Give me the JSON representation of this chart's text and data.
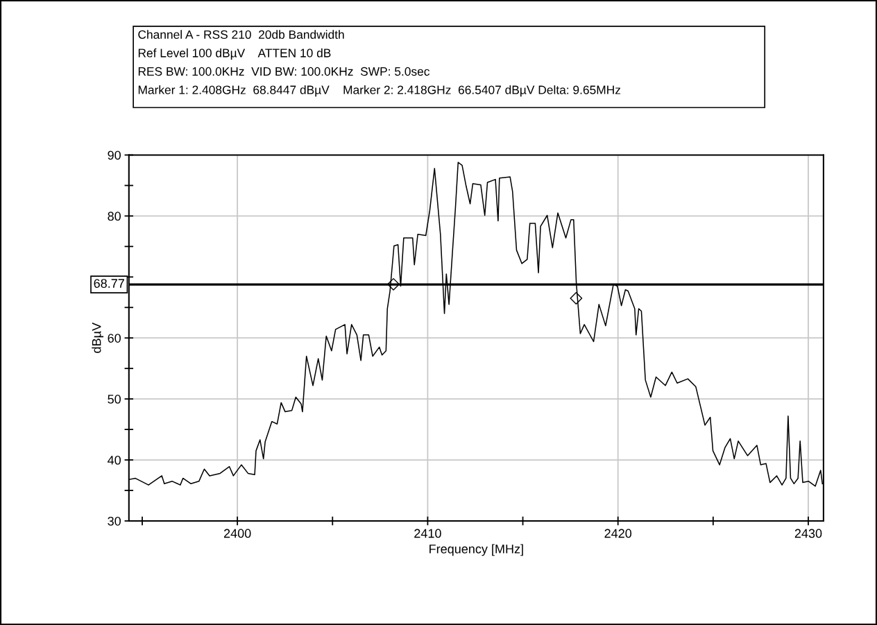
{
  "chart_data": {
    "type": "line",
    "annotations": [
      "Channel A - RSS 210  20db Bandwidth",
      "Ref Level 100 dBµV    ATTEN 10 dB",
      "RES BW: 100.0KHz  VID BW: 100.0KHz  SWP: 5.0sec",
      "Marker 1: 2.408GHz  68.8447 dBµV    Marker 2: 2.418GHz  66.5407 dBµV Delta: 9.65MHz"
    ],
    "xlabel": "Frequency [MHz]",
    "ylabel": "dBµV",
    "xlim": [
      2394.3,
      2430.8
    ],
    "ylim": [
      30,
      90
    ],
    "xticks": [
      {
        "value": 2395,
        "label": null
      },
      2400,
      {
        "value": 2405,
        "label": null
      },
      2410,
      {
        "value": 2415,
        "label": null
      },
      2420,
      {
        "value": 2425,
        "label": null
      },
      2430
    ],
    "yticks": [
      30,
      {
        "value": 35,
        "label": null
      },
      40,
      {
        "value": 45,
        "label": null
      },
      50,
      {
        "value": 55,
        "label": null
      },
      60,
      {
        "value": 65,
        "label": null
      },
      {
        "value": 70,
        "label": null
      },
      {
        "value": 75,
        "label": null
      },
      80,
      {
        "value": 85,
        "label": null
      },
      90
    ],
    "grid": true,
    "ref_lines": [
      {
        "axis": "y",
        "value": 68.77,
        "label": "68.77",
        "color": "#000000"
      }
    ],
    "series": [
      {
        "color": "#000000",
        "x": [
          2394.32,
          2394.63,
          2395.33,
          2395.75,
          2396.03,
          2396.16,
          2396.58,
          2397.0,
          2397.14,
          2397.56,
          2397.98,
          2398.26,
          2398.54,
          2399.09,
          2399.58,
          2399.79,
          2400.21,
          2400.56,
          2400.91,
          2400.98,
          2401.19,
          2401.37,
          2401.46,
          2401.81,
          2402.09,
          2402.3,
          2402.51,
          2402.86,
          2403.07,
          2403.35,
          2403.42,
          2403.63,
          2403.97,
          2404.25,
          2404.46,
          2404.67,
          2404.95,
          2405.16,
          2405.65,
          2405.76,
          2406.0,
          2406.28,
          2406.49,
          2406.62,
          2406.9,
          2407.11,
          2407.46,
          2407.6,
          2407.81,
          2407.88,
          2408.02,
          2408.23,
          2408.44,
          2408.58,
          2408.74,
          2409.21,
          2409.3,
          2409.48,
          2409.9,
          2410.11,
          2410.36,
          2410.67,
          2410.88,
          2410.98,
          2411.12,
          2411.3,
          2411.46,
          2411.6,
          2411.81,
          2412.02,
          2412.23,
          2412.37,
          2412.79,
          2413.0,
          2413.14,
          2413.56,
          2413.7,
          2413.77,
          2414.33,
          2414.46,
          2414.67,
          2414.95,
          2415.23,
          2415.37,
          2415.65,
          2415.82,
          2415.93,
          2416.28,
          2416.56,
          2416.84,
          2417.26,
          2417.53,
          2417.67,
          2417.81,
          2418.02,
          2418.23,
          2418.72,
          2419.0,
          2419.35,
          2419.76,
          2419.97,
          2420.18,
          2420.39,
          2420.53,
          2420.88,
          2420.95,
          2421.09,
          2421.23,
          2421.44,
          2421.72,
          2422.0,
          2422.49,
          2422.83,
          2423.11,
          2423.67,
          2424.09,
          2424.57,
          2424.85,
          2424.99,
          2425.34,
          2425.62,
          2425.9,
          2426.11,
          2426.32,
          2426.81,
          2427.3,
          2427.5,
          2427.78,
          2427.99,
          2428.34,
          2428.62,
          2428.83,
          2428.94,
          2429.07,
          2429.25,
          2429.46,
          2429.57,
          2429.71,
          2430.02,
          2430.37,
          2430.65,
          2430.74
        ],
        "values": [
          36.8,
          37.0,
          35.9,
          36.8,
          37.4,
          36.1,
          36.5,
          35.9,
          37.0,
          36.1,
          36.5,
          38.5,
          37.4,
          37.8,
          38.9,
          37.4,
          39.2,
          37.8,
          37.6,
          41.5,
          43.3,
          40.2,
          43.0,
          46.3,
          45.9,
          49.4,
          47.9,
          48.1,
          50.3,
          49.2,
          47.9,
          57.0,
          52.2,
          56.6,
          53.1,
          60.3,
          57.9,
          61.4,
          62.2,
          57.4,
          62.2,
          60.5,
          56.3,
          60.5,
          60.5,
          57.0,
          58.5,
          57.2,
          57.9,
          64.8,
          67.7,
          75.1,
          75.3,
          68.5,
          76.4,
          76.4,
          72.0,
          77.0,
          76.8,
          80.9,
          87.8,
          77.0,
          64.0,
          70.5,
          65.5,
          74.0,
          81.4,
          88.8,
          88.3,
          84.9,
          82.0,
          85.3,
          85.1,
          80.1,
          85.5,
          86.0,
          79.2,
          86.2,
          86.4,
          84.0,
          74.4,
          72.2,
          72.9,
          78.8,
          78.8,
          70.7,
          78.3,
          80.1,
          74.8,
          80.5,
          76.4,
          79.4,
          79.4,
          69.0,
          60.7,
          62.2,
          59.4,
          65.5,
          62.0,
          68.8,
          68.5,
          65.3,
          67.9,
          67.7,
          64.8,
          60.5,
          64.8,
          64.4,
          53.1,
          50.3,
          53.6,
          52.2,
          54.4,
          52.6,
          53.3,
          52.0,
          45.7,
          47.0,
          41.5,
          39.2,
          42.0,
          43.5,
          40.2,
          43.1,
          40.7,
          42.4,
          39.2,
          39.4,
          36.3,
          37.4,
          35.9,
          37.0,
          47.2,
          37.0,
          36.1,
          37.0,
          43.1,
          36.3,
          36.5,
          35.7,
          38.3,
          36.1
        ]
      },
      {
        "type": "scatter",
        "marker": "diamond",
        "color": "#000000",
        "x": [
          2408.2,
          2417.8
        ],
        "values": [
          68.8,
          66.5
        ]
      }
    ]
  }
}
